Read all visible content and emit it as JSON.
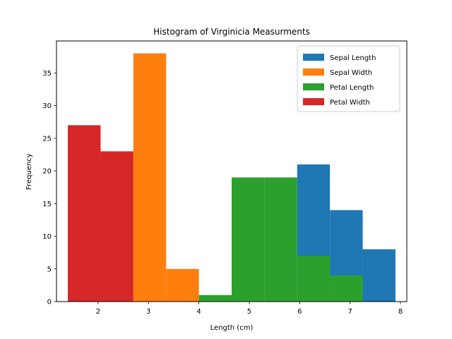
{
  "chart_data": {
    "type": "bar",
    "title": "Histogram of Virginicia Measurments",
    "xlabel": "Length (cm)",
    "ylabel": "Frequency",
    "xlim": [
      1.175,
      8.125
    ],
    "ylim": [
      0,
      39.9
    ],
    "xticks": [
      2,
      3,
      4,
      5,
      6,
      7,
      8
    ],
    "yticks": [
      0,
      5,
      10,
      15,
      20,
      25,
      30,
      35
    ],
    "legend_position": "top-right",
    "grid": false,
    "bin_width": 0.65,
    "series": [
      {
        "name": "Sepal Length",
        "color": "#1f77b4",
        "bins": [
          {
            "x0": 5.95,
            "value": 21
          },
          {
            "x0": 6.6,
            "value": 14
          },
          {
            "x0": 7.25,
            "value": 8
          }
        ]
      },
      {
        "name": "Sepal Width",
        "color": "#ff7f0e",
        "bins": [
          {
            "x0": 2.7,
            "value": 38
          },
          {
            "x0": 3.35,
            "value": 5
          }
        ]
      },
      {
        "name": "Petal Length",
        "color": "#2ca02c",
        "bins": [
          {
            "x0": 4.0,
            "value": 1
          },
          {
            "x0": 4.65,
            "value": 19
          },
          {
            "x0": 5.3,
            "value": 19
          },
          {
            "x0": 5.95,
            "value": 7
          },
          {
            "x0": 6.6,
            "value": 4
          }
        ]
      },
      {
        "name": "Petal Width",
        "color": "#d62728",
        "bins": [
          {
            "x0": 1.4,
            "value": 27
          },
          {
            "x0": 2.05,
            "value": 23
          }
        ]
      }
    ]
  }
}
